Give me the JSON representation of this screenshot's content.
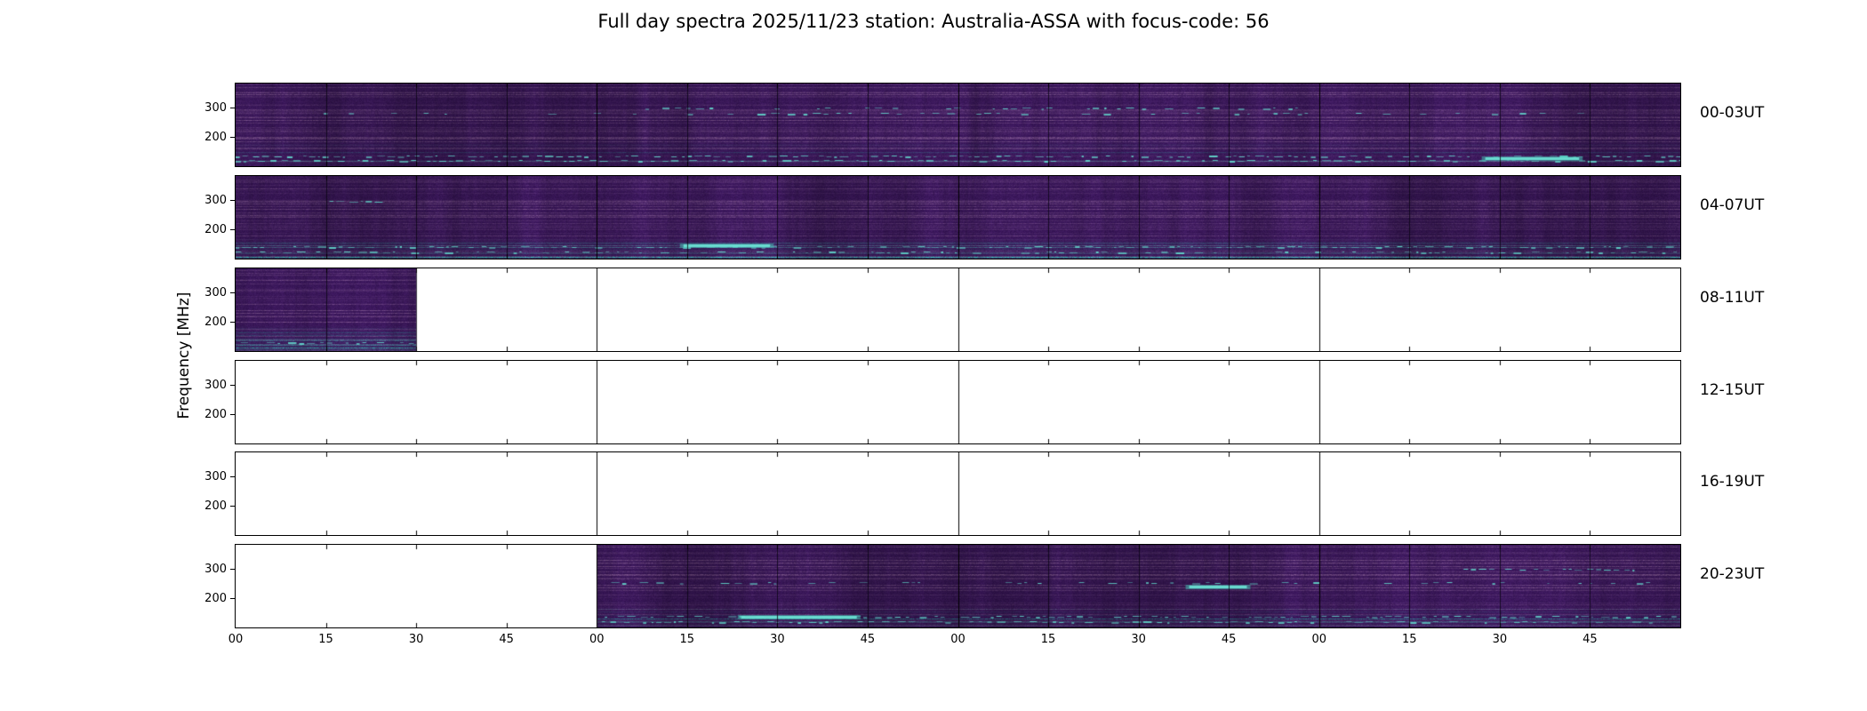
{
  "chart_data": {
    "type": "heatmap",
    "title": "Full day spectra 2025/11/23 station: Australia-ASSA with focus-code: 56",
    "date": "2025/11/23",
    "station": "Australia-ASSA",
    "focus_code": "56",
    "ylabel": "Frequency [MHz]",
    "y_ticks": [
      "300",
      "200"
    ],
    "ylim_mhz": [
      100,
      400
    ],
    "hours_per_panel": 4,
    "x_tick_labels": [
      "00",
      "15",
      "30",
      "45",
      "00",
      "15",
      "30",
      "45",
      "00",
      "15",
      "30",
      "45",
      "00",
      "15",
      "30",
      "45"
    ],
    "legend": "none",
    "grid": "hour-lines-and-quarter-ticks",
    "colors": {
      "background": "#ffffff",
      "spectrum_base": "#38165a",
      "spectrum_accent": "#49c0b2",
      "axis": "#000000"
    },
    "panels": [
      {
        "label": "00-03UT",
        "coverage_hours": [
          [
            0,
            4
          ]
        ],
        "features": [
          {
            "type": "dashes",
            "y": 0.3,
            "x0": 0.28,
            "x1": 0.74,
            "density": 0.18
          },
          {
            "type": "dashes",
            "y": 0.37,
            "x0": 0.05,
            "x1": 0.95,
            "density": 0.1
          },
          {
            "type": "band",
            "y": 0.88,
            "x0": 0.0,
            "x1": 1.0,
            "density": 0.45
          },
          {
            "type": "band",
            "y": 0.94,
            "x0": 0.0,
            "x1": 1.0,
            "density": 0.35
          },
          {
            "type": "blob",
            "y": 0.9,
            "x0": 0.865,
            "x1": 0.93
          }
        ]
      },
      {
        "label": "04-07UT",
        "coverage_hours": [
          [
            0,
            4
          ]
        ],
        "features": [
          {
            "type": "dashes",
            "y": 0.31,
            "x0": 0.065,
            "x1": 0.1,
            "density": 0.85
          },
          {
            "type": "band",
            "y": 0.86,
            "x0": 0.0,
            "x1": 1.0,
            "density": 0.35
          },
          {
            "type": "band",
            "y": 0.93,
            "x0": 0.0,
            "x1": 1.0,
            "density": 0.3
          },
          {
            "type": "blob",
            "y": 0.84,
            "x0": 0.31,
            "x1": 0.37
          }
        ]
      },
      {
        "label": "08-11UT",
        "coverage_hours": [
          [
            0,
            0.5
          ]
        ],
        "features": [
          {
            "type": "band",
            "y": 0.9,
            "x0": 0.0,
            "x1": 0.125,
            "density": 0.25
          }
        ]
      },
      {
        "label": "12-15UT",
        "coverage_hours": [],
        "features": []
      },
      {
        "label": "16-19UT",
        "coverage_hours": [],
        "features": []
      },
      {
        "label": "20-23UT",
        "coverage_hours": [
          [
            1,
            4
          ]
        ],
        "features": [
          {
            "type": "dashes",
            "y": 0.3,
            "x0": 0.85,
            "x1": 0.97,
            "density": 0.5
          },
          {
            "type": "dashes",
            "y": 0.46,
            "x0": 0.26,
            "x1": 0.98,
            "density": 0.15
          },
          {
            "type": "blob",
            "y": 0.5,
            "x0": 0.66,
            "x1": 0.7
          },
          {
            "type": "band",
            "y": 0.87,
            "x0": 0.25,
            "x1": 1.0,
            "density": 0.45
          },
          {
            "type": "blob",
            "y": 0.87,
            "x0": 0.35,
            "x1": 0.43
          },
          {
            "type": "band",
            "y": 0.94,
            "x0": 0.25,
            "x1": 1.0,
            "density": 0.3
          }
        ]
      }
    ]
  }
}
